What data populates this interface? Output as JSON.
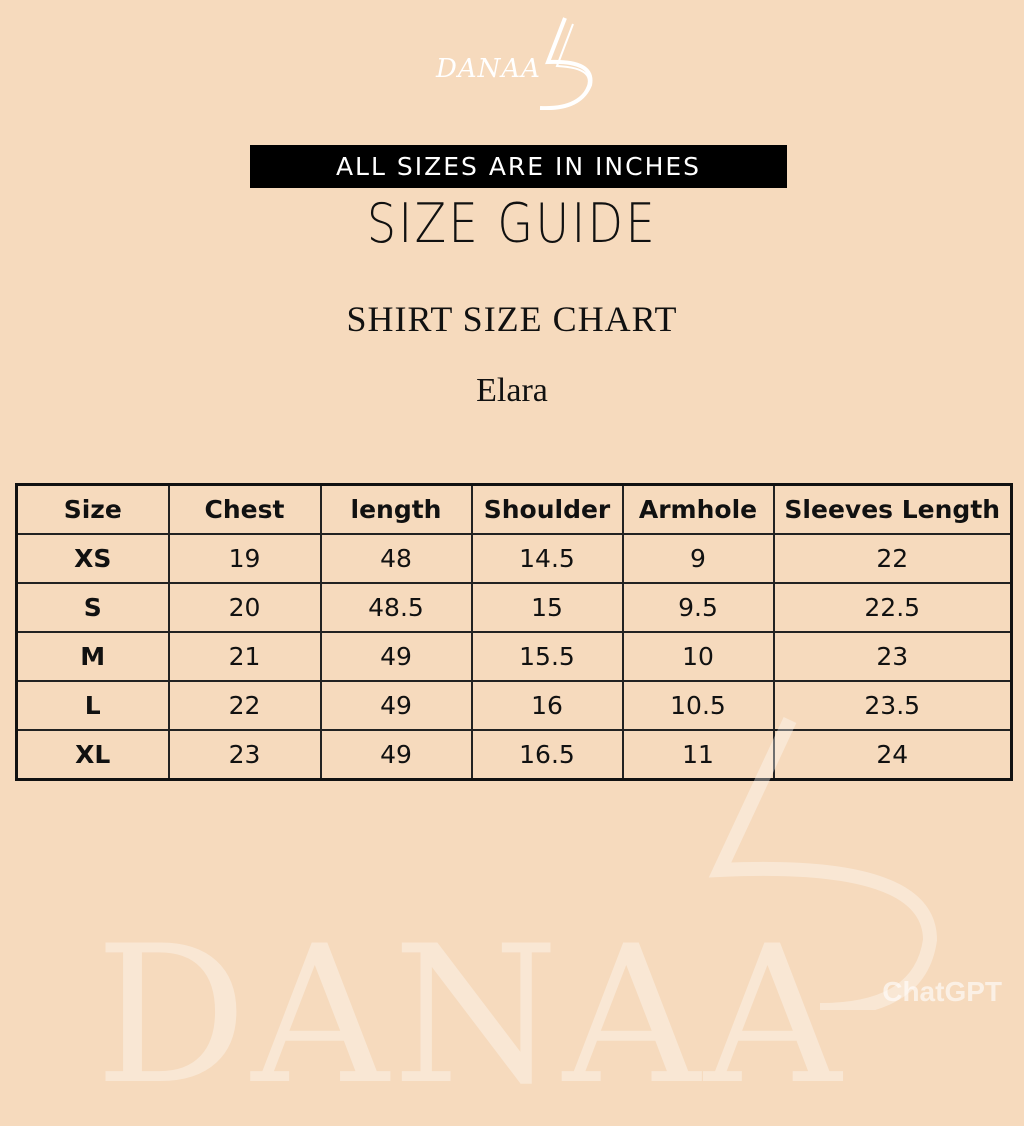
{
  "logo": {
    "text": "DANAA",
    "mark": "5"
  },
  "banner": "ALL SIZES ARE IN INCHES",
  "title": "SIZE GUIDE",
  "subtitle": "SHIRT SIZE CHART",
  "product": "Elara",
  "table": {
    "headers": [
      "Size",
      "Chest",
      "length",
      "Shoulder",
      "Armhole",
      "Sleeves Length"
    ],
    "rows": [
      [
        "XS",
        "19",
        "48",
        "14.5",
        "9",
        "22"
      ],
      [
        "S",
        "20",
        "48.5",
        "15",
        "9.5",
        "22.5"
      ],
      [
        "M",
        "21",
        "49",
        "15.5",
        "10",
        "23"
      ],
      [
        "L",
        "22",
        "49",
        "16",
        "10.5",
        "23.5"
      ],
      [
        "XL",
        "23",
        "49",
        "16.5",
        "11",
        "24"
      ]
    ]
  },
  "watermark": {
    "text": "DANAA",
    "badge": "ChatGPT"
  },
  "colors": {
    "background": "#f6dabd",
    "banner": "#000000",
    "text": "#111111"
  }
}
